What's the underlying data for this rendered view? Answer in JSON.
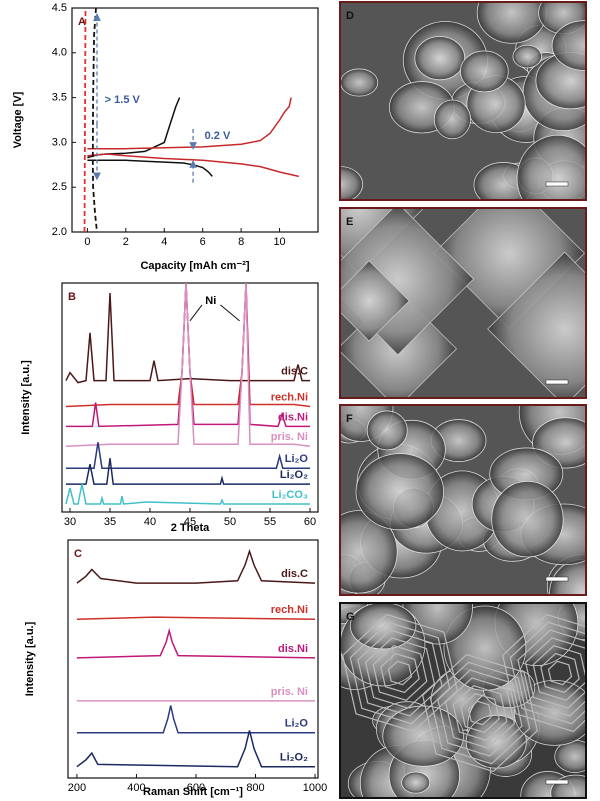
{
  "chart_data": [
    {
      "type": "line",
      "label": "A",
      "xlabel": "Capacity [mAh cm⁻²]",
      "ylabel": "Voltage [V]",
      "xlim": [
        -0.8,
        12
      ],
      "xticks": [
        0,
        2,
        4,
        6,
        8,
        10
      ],
      "ylim": [
        2.0,
        4.5
      ],
      "yticks": [
        {
          "value": 2.0,
          "label": "2.0"
        },
        2.5,
        {
          "value": 3.0,
          "label": "3.0"
        },
        3.5,
        {
          "value": 4.0,
          "label": "4.0"
        },
        4.5
      ],
      "annotations": [
        "> 1.5 V",
        "0.2 V"
      ],
      "series": [
        {
          "color": "#111111",
          "x": [
            0,
            0.5,
            1,
            2,
            3,
            3.5,
            4,
            4.3,
            4.6,
            4.8
          ],
          "values": [
            2.83,
            2.86,
            2.87,
            2.88,
            2.9,
            2.95,
            3.0,
            3.2,
            3.4,
            3.5
          ]
        },
        {
          "color": "#111111",
          "x": [
            0,
            1,
            2,
            3,
            4,
            5,
            5.5,
            6,
            6.3,
            6.5
          ],
          "values": [
            2.8,
            2.8,
            2.8,
            2.79,
            2.78,
            2.77,
            2.75,
            2.72,
            2.67,
            2.62
          ]
        },
        {
          "color": "#c8282a",
          "x": [
            0,
            2,
            4,
            6,
            8,
            9,
            9.5,
            10,
            10.3,
            10.5,
            10.6
          ],
          "values": [
            2.93,
            2.93,
            2.94,
            2.95,
            2.98,
            3.02,
            3.1,
            3.25,
            3.35,
            3.4,
            3.5
          ]
        },
        {
          "color": "#c8282a",
          "x": [
            0,
            1,
            2,
            4,
            6,
            8,
            9,
            10,
            11
          ],
          "values": [
            2.85,
            2.87,
            2.85,
            2.82,
            2.8,
            2.76,
            2.73,
            2.67,
            2.62
          ]
        },
        {
          "color": "#111111",
          "dashed": true,
          "x": [
            0.45,
            0.35,
            0.3,
            0.28,
            0.3,
            0.4,
            0.5
          ],
          "values": [
            4.5,
            4.2,
            3.5,
            2.8,
            2.5,
            2.2,
            2.0
          ]
        },
        {
          "color": "#e03030",
          "dashed": true,
          "x": [
            -0.15,
            -0.1
          ],
          "values": [
            2.0,
            4.5
          ]
        }
      ]
    },
    {
      "type": "line",
      "label": "B",
      "xlabel": "2 Theta",
      "ylabel": "Intensity [a.u.]",
      "annotations": [
        "Ni"
      ],
      "xlim": [
        29,
        61
      ],
      "xticks": [
        30,
        35,
        40,
        45,
        50,
        55,
        60
      ],
      "ylim": [
        2,
        13.5
      ],
      "series": [
        {
          "name": "dis.C",
          "color": "#4a1818",
          "x": [
            29.5,
            30,
            31,
            32,
            32.5,
            33,
            34.5,
            35,
            35.5,
            40,
            40.5,
            41,
            45,
            50,
            55,
            58,
            58.5,
            59,
            60
          ],
          "values": [
            8.6,
            9.0,
            8.5,
            8.6,
            11.0,
            8.6,
            8.6,
            13.0,
            8.6,
            8.6,
            9.6,
            8.6,
            8.7,
            8.6,
            8.6,
            8.6,
            9.4,
            8.6,
            8.6
          ]
        },
        {
          "name": "rech.Ni",
          "color": "#d0302a",
          "x": [
            29.5,
            35,
            43.5,
            44,
            44.5,
            45,
            45.5,
            51,
            51.5,
            52,
            52.5,
            58,
            60
          ],
          "values": [
            7.3,
            7.4,
            7.4,
            9,
            13.5,
            9,
            7.4,
            7.4,
            9,
            13.5,
            7.4,
            7.4,
            7.3
          ]
        },
        {
          "name": "dis.Ni",
          "color": "#c0187a",
          "x": [
            29.5,
            32.8,
            33.2,
            33.6,
            43.5,
            44,
            44.5,
            45,
            45.5,
            51,
            51.5,
            52,
            52.5,
            56,
            56.5,
            57,
            60
          ],
          "values": [
            6.3,
            6.3,
            7.5,
            6.3,
            6.4,
            9,
            13.5,
            9,
            6.4,
            6.4,
            9,
            13.5,
            6.4,
            6.3,
            6.9,
            6.3,
            6.3
          ]
        },
        {
          "name": "pris. Ni",
          "color": "#d890c0",
          "x": [
            29.5,
            35,
            43.5,
            44,
            44.5,
            45,
            45.5,
            51,
            51.5,
            52,
            52.5,
            58,
            60
          ],
          "values": [
            5.3,
            5.4,
            5.4,
            9,
            13.5,
            9,
            5.4,
            5.4,
            9,
            13.5,
            5.4,
            5.4,
            5.3
          ]
        },
        {
          "name": "Li₂O",
          "color": "#2a3a80",
          "x": [
            29.5,
            33,
            33.5,
            34,
            55.8,
            56.2,
            56.6,
            60
          ],
          "values": [
            4.2,
            4.2,
            5.5,
            4.2,
            4.2,
            4.8,
            4.2,
            4.2
          ]
        },
        {
          "name": "Li₂O₂",
          "color": "#1a2a60",
          "x": [
            29.5,
            32,
            32.5,
            33,
            34.6,
            35,
            35.4,
            48.8,
            49,
            49.2,
            60
          ],
          "values": [
            3.4,
            3.4,
            4.4,
            3.4,
            3.4,
            4.7,
            3.4,
            3.4,
            3.7,
            3.4,
            3.4
          ]
        },
        {
          "name": "Li₂CO₃",
          "color": "#40c0c8",
          "x": [
            29.5,
            30,
            30.5,
            31,
            31.5,
            32,
            33.8,
            34,
            34.2,
            36.3,
            36.5,
            36.7,
            39.5,
            48.8,
            49,
            49.2,
            60
          ],
          "values": [
            2.4,
            3.2,
            2.4,
            2.4,
            3.4,
            2.4,
            2.4,
            2.7,
            2.4,
            2.4,
            2.8,
            2.4,
            2.5,
            2.4,
            2.6,
            2.4,
            2.4
          ]
        }
      ]
    },
    {
      "type": "line",
      "label": "C",
      "xlabel": "Raman Shift [cm⁻¹]",
      "ylabel": "Intensity [a.u.]",
      "xlim": [
        170,
        1010
      ],
      "xticks": [
        200,
        400,
        600,
        800,
        1000
      ],
      "ylim": [
        0,
        10.5
      ],
      "series": [
        {
          "name": "dis.C",
          "color": "#4a1818",
          "x": [
            200,
            230,
            250,
            280,
            400,
            600,
            740,
            765,
            780,
            795,
            820,
            1000
          ],
          "values": [
            8.6,
            8.9,
            9.2,
            8.8,
            8.6,
            8.6,
            8.7,
            9.4,
            10.0,
            9.4,
            8.7,
            8.6
          ]
        },
        {
          "name": "rech.Ni",
          "color": "#d0302a",
          "x": [
            200,
            460,
            1000
          ],
          "values": [
            7.0,
            7.1,
            7.0
          ]
        },
        {
          "name": "dis.Ni",
          "color": "#c0187a",
          "x": [
            200,
            480,
            500,
            510,
            520,
            540,
            1000
          ],
          "values": [
            5.3,
            5.4,
            6.0,
            6.5,
            6.0,
            5.4,
            5.3
          ]
        },
        {
          "name": "pris. Ni",
          "color": "#d890c0",
          "x": [
            200,
            1000
          ],
          "values": [
            3.4,
            3.4
          ]
        },
        {
          "name": "Li₂O",
          "color": "#2a3a80",
          "x": [
            200,
            490,
            505,
            515,
            525,
            540,
            1000
          ],
          "values": [
            2.0,
            2.0,
            2.6,
            3.2,
            2.6,
            2.0,
            2.0
          ]
        },
        {
          "name": "Li₂O₂",
          "color": "#1a2a60",
          "x": [
            200,
            230,
            250,
            270,
            740,
            765,
            780,
            795,
            820,
            1000
          ],
          "values": [
            0.5,
            0.8,
            1.1,
            0.6,
            0.5,
            1.3,
            2.1,
            1.3,
            0.5,
            0.5
          ]
        }
      ]
    }
  ],
  "images": [
    {
      "label": "D"
    },
    {
      "label": "E"
    },
    {
      "label": "F"
    },
    {
      "label": "G"
    }
  ]
}
